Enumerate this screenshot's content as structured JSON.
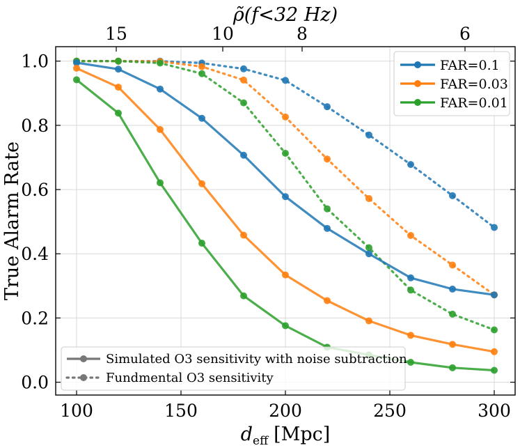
{
  "chart_data": {
    "type": "line",
    "xlabel": "d",
    "xlabel_sub": "eff",
    "xlabel_unit": "[Mpc]",
    "ylabel": "True Alarm Rate",
    "top_axis_label": "ρ̃(f<32 Hz)",
    "xlim": [
      90,
      310
    ],
    "ylim": [
      -0.04,
      1.045
    ],
    "x_ticks": [
      100,
      150,
      200,
      250,
      300
    ],
    "y_ticks": [
      0.0,
      0.2,
      0.4,
      0.6,
      0.8,
      1.0
    ],
    "x_tick_labels": [
      "100",
      "150",
      "200",
      "250",
      "300"
    ],
    "y_tick_labels": [
      "0.0",
      "0.2",
      "0.4",
      "0.6",
      "0.8",
      "1.0"
    ],
    "top_ticks": [
      {
        "label": "15",
        "x": 119
      },
      {
        "label": "10",
        "x": 170
      },
      {
        "label": "8",
        "x": 208
      },
      {
        "label": "6",
        "x": 286
      }
    ],
    "grid": true,
    "legend_placement": "top-right",
    "x": [
      100,
      120,
      140,
      160,
      180,
      200,
      220,
      240,
      260,
      280,
      300
    ],
    "series": [
      {
        "name": "FAR=0.1",
        "style": "solid",
        "color": "#1f77b4",
        "values": [
          0.995,
          0.975,
          0.913,
          0.822,
          0.707,
          0.578,
          0.479,
          0.4,
          0.325,
          0.29,
          0.272
        ]
      },
      {
        "name": "FAR=0.03",
        "style": "solid",
        "color": "#ff7f0e",
        "values": [
          0.978,
          0.919,
          0.787,
          0.618,
          0.458,
          0.334,
          0.254,
          0.191,
          0.146,
          0.118,
          0.095
        ]
      },
      {
        "name": "FAR=0.01",
        "style": "solid",
        "color": "#2ca02c",
        "values": [
          0.942,
          0.838,
          0.621,
          0.433,
          0.269,
          0.176,
          0.109,
          0.085,
          0.062,
          0.045,
          0.037
        ]
      },
      {
        "name": "FAR=0.1",
        "style": "dotted",
        "color": "#1f77b4",
        "values": [
          1.0,
          1.0,
          1.0,
          0.994,
          0.976,
          0.94,
          0.858,
          0.77,
          0.678,
          0.581,
          0.482
        ]
      },
      {
        "name": "FAR=0.03",
        "style": "dotted",
        "color": "#ff7f0e",
        "values": [
          1.0,
          1.0,
          0.999,
          0.983,
          0.941,
          0.826,
          0.695,
          0.572,
          0.457,
          0.365,
          0.272
        ]
      },
      {
        "name": "FAR=0.01",
        "style": "dotted",
        "color": "#2ca02c",
        "values": [
          1.0,
          1.0,
          0.994,
          0.961,
          0.87,
          0.713,
          0.54,
          0.419,
          0.287,
          0.212,
          0.163
        ]
      }
    ],
    "legend_colors": [
      {
        "label": "FAR=0.1",
        "color": "#1f77b4"
      },
      {
        "label": "FAR=0.03",
        "color": "#ff7f0e"
      },
      {
        "label": "FAR=0.01",
        "color": "#2ca02c"
      }
    ],
    "legend_styles": [
      {
        "label": "Simulated O3 sensitivity with noise subtraction",
        "style": "solid"
      },
      {
        "label": "Fundmental O3 sensitivity",
        "style": "dotted"
      }
    ]
  }
}
